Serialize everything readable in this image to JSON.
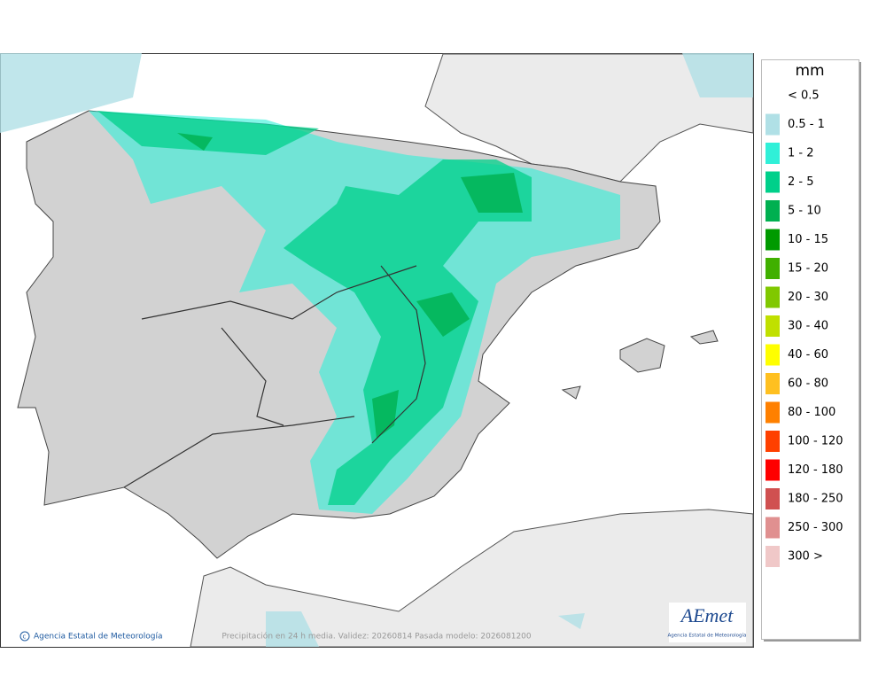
{
  "legend": {
    "title": "mm",
    "items": [
      {
        "label": "< 0.5"
      },
      {
        "label": "0.5 - 1",
        "color": "#b0e0e6"
      },
      {
        "label": "1 - 2",
        "color": "#30f0d8"
      },
      {
        "label": "2 - 5",
        "color": "#00d08a"
      },
      {
        "label": "5 - 10",
        "color": "#00b050"
      },
      {
        "label": "10 - 15",
        "color": "#009a00"
      },
      {
        "label": "15 - 20",
        "color": "#40b000"
      },
      {
        "label": "20 - 30",
        "color": "#80c800"
      },
      {
        "label": "30 - 40",
        "color": "#c0e000"
      },
      {
        "label": "40 - 60",
        "color": "#ffff00"
      },
      {
        "label": "60 - 80",
        "color": "#ffc020"
      },
      {
        "label": "80 - 100",
        "color": "#ff8000"
      },
      {
        "label": "100 - 120",
        "color": "#ff4000"
      },
      {
        "label": "120 - 180",
        "color": "#ff0000"
      },
      {
        "label": "180 - 250",
        "color": "#d05050"
      },
      {
        "label": "250 - 300",
        "color": "#e09090"
      },
      {
        "label": "300 >",
        "color": "#f0c8c8"
      }
    ]
  },
  "footer": {
    "credit": "Agencia Estatal de Meteorología",
    "caption": "Precipitación en 24 h media. Validez: 20260814 Pasada modelo: 2026081200"
  },
  "logo": {
    "name": "AEmet",
    "subtitle": "Agencia Estatal de Meteorología"
  }
}
